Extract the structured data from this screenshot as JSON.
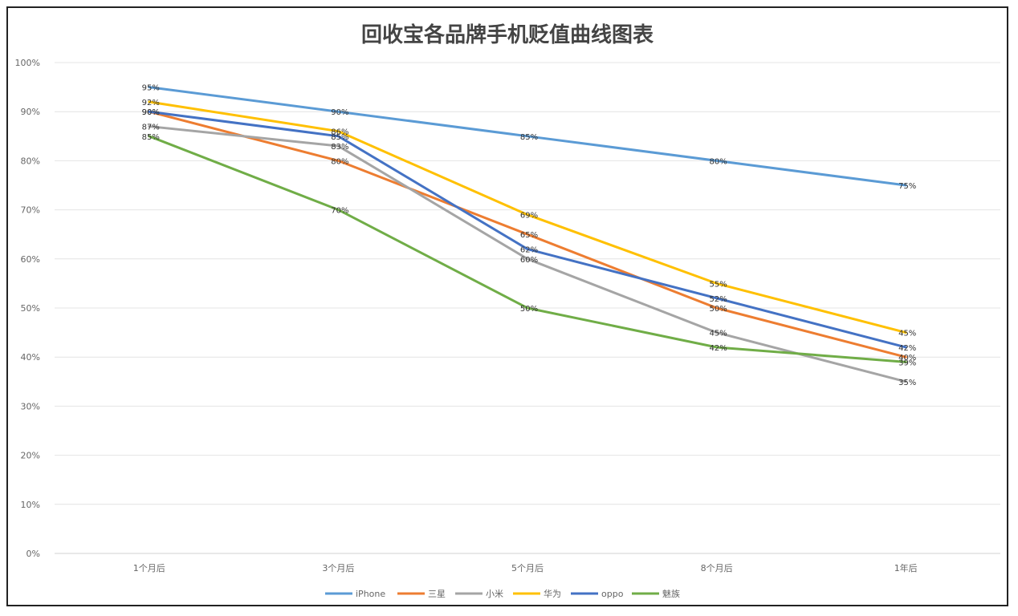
{
  "chart_data": {
    "type": "line",
    "title": "回收宝各品牌手机贬值曲线图表",
    "categories": [
      "1个月后",
      "3个月后",
      "5个月后",
      "8个月后",
      "1年后"
    ],
    "y_ticks": [
      "0%",
      "10%",
      "20%",
      "30%",
      "40%",
      "50%",
      "60%",
      "70%",
      "80%",
      "90%",
      "100%"
    ],
    "ylim": [
      0,
      100
    ],
    "grid": true,
    "legend_position": "bottom",
    "series": [
      {
        "name": "iPhone",
        "color": "#5b9bd5",
        "values": [
          95,
          90,
          85,
          80,
          75
        ],
        "labels": [
          "95%",
          "90%",
          "85%",
          "80%",
          "75%"
        ]
      },
      {
        "name": "三星",
        "color": "#ed7d31",
        "values": [
          90,
          80,
          65,
          50,
          40
        ],
        "labels": [
          "90%",
          "80%",
          "65%",
          "50%",
          "40%"
        ]
      },
      {
        "name": "小米",
        "color": "#a5a5a5",
        "values": [
          87,
          83,
          60,
          45,
          35
        ],
        "labels": [
          "87%",
          "83%",
          "60%",
          "45%",
          "35%"
        ]
      },
      {
        "name": "华为",
        "color": "#ffc000",
        "values": [
          92,
          86,
          69,
          55,
          45
        ],
        "labels": [
          "92%",
          "86%",
          "69%",
          "55%",
          "45%"
        ]
      },
      {
        "name": "oppo",
        "color": "#4472c4",
        "values": [
          90,
          85,
          62,
          52,
          42
        ],
        "labels": [
          "90%",
          "85%",
          "62%",
          "52%",
          "42%"
        ]
      },
      {
        "name": "魅族",
        "color": "#70ad47",
        "values": [
          85,
          70,
          50,
          42,
          39
        ],
        "labels": [
          "85%",
          "70%",
          "50%",
          "42%",
          "39%"
        ]
      }
    ]
  }
}
